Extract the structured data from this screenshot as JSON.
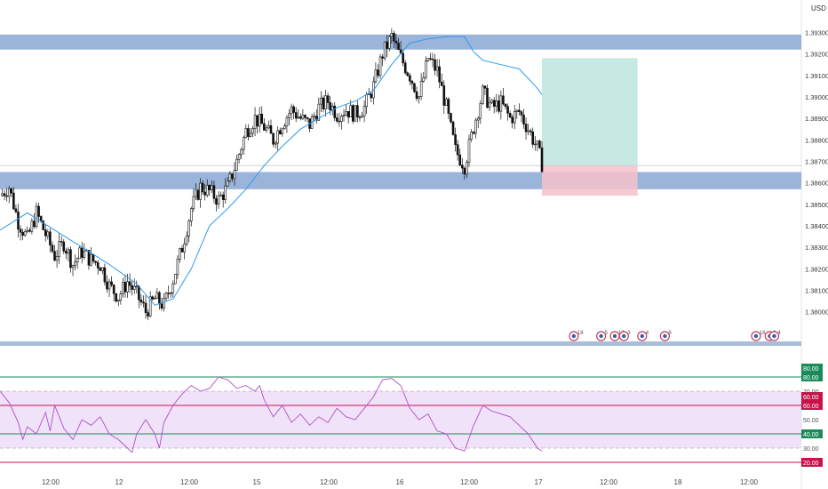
{
  "currency_label": "USD",
  "colors": {
    "zone": "#7f9fd0",
    "ma": "#2f9bf0",
    "rsi": "#b04fc8",
    "rsi_band": "#e9d6f7",
    "target": "#b9e4dd",
    "stop": "#f6c1c9",
    "green_line": "#1a8a5a",
    "red_line": "#c8124a",
    "candle": "#111111"
  },
  "chart_data": [
    {
      "type": "candlestick",
      "ylim": [
        1.3787,
        1.3943
      ],
      "price_ticks": [
        1.38,
        1.381,
        1.382,
        1.383,
        1.384,
        1.385,
        1.386,
        1.387,
        1.388,
        1.389,
        1.39,
        1.391,
        1.392,
        1.393,
        1.394
      ],
      "price_tick_labels": [
        "1.38000",
        "1.38100",
        "1.38200",
        "1.38300",
        "1.38400",
        "1.38500",
        "1.38600",
        "1.38700",
        "1.38800",
        "1.38900",
        "1.39000",
        "1.39100",
        "1.39200",
        "1.39300",
        "1.39400"
      ],
      "x_tick_labels": [
        "12:00",
        "12",
        "12:00",
        "15",
        "12:00",
        "16",
        "12:00",
        "17",
        "12:00",
        "18",
        "12:00"
      ],
      "close_path": [
        [
          0,
          1.3854
        ],
        [
          2,
          1.3858
        ],
        [
          4,
          1.3842
        ],
        [
          6,
          1.3834
        ],
        [
          8,
          1.3846
        ],
        [
          10,
          1.3836
        ],
        [
          12,
          1.3826
        ],
        [
          14,
          1.3832
        ],
        [
          16,
          1.3822
        ],
        [
          18,
          1.3828
        ],
        [
          20,
          1.3824
        ],
        [
          22,
          1.3822
        ],
        [
          24,
          1.3812
        ],
        [
          26,
          1.3807
        ],
        [
          28,
          1.3814
        ],
        [
          30,
          1.3808
        ],
        [
          32,
          1.38
        ],
        [
          34,
          1.3806
        ],
        [
          36,
          1.3803
        ],
        [
          38,
          1.3815
        ],
        [
          40,
          1.383
        ],
        [
          42,
          1.3848
        ],
        [
          44,
          1.3858
        ],
        [
          46,
          1.3856
        ],
        [
          48,
          1.3852
        ],
        [
          50,
          1.3858
        ],
        [
          52,
          1.387
        ],
        [
          54,
          1.3884
        ],
        [
          56,
          1.389
        ],
        [
          58,
          1.3886
        ],
        [
          60,
          1.388
        ],
        [
          62,
          1.3888
        ],
        [
          64,
          1.3894
        ],
        [
          66,
          1.389
        ],
        [
          68,
          1.3887
        ],
        [
          70,
          1.3895
        ],
        [
          72,
          1.3898
        ],
        [
          74,
          1.3892
        ],
        [
          76,
          1.3894
        ],
        [
          78,
          1.3892
        ],
        [
          80,
          1.3895
        ],
        [
          82,
          1.3905
        ],
        [
          84,
          1.392
        ],
        [
          86,
          1.3928
        ],
        [
          88,
          1.3918
        ],
        [
          90,
          1.391
        ],
        [
          92,
          1.39
        ],
        [
          94,
          1.3918
        ],
        [
          96,
          1.3912
        ],
        [
          98,
          1.3895
        ],
        [
          100,
          1.3875
        ],
        [
          102,
          1.3868
        ],
        [
          104,
          1.3886
        ],
        [
          106,
          1.3902
        ],
        [
          108,
          1.3895
        ],
        [
          110,
          1.3897
        ],
        [
          112,
          1.389
        ],
        [
          114,
          1.3893
        ],
        [
          116,
          1.3885
        ],
        [
          118,
          1.3876
        ],
        [
          119,
          1.3869
        ]
      ],
      "moving_average": [
        [
          0,
          1.3838
        ],
        [
          6,
          1.3846
        ],
        [
          12,
          1.3838
        ],
        [
          18,
          1.383
        ],
        [
          24,
          1.3822
        ],
        [
          30,
          1.3813
        ],
        [
          34,
          1.3803
        ],
        [
          38,
          1.3806
        ],
        [
          42,
          1.382
        ],
        [
          46,
          1.384
        ],
        [
          50,
          1.3848
        ],
        [
          54,
          1.3857
        ],
        [
          58,
          1.3868
        ],
        [
          62,
          1.3877
        ],
        [
          66,
          1.3885
        ],
        [
          70,
          1.389
        ],
        [
          74,
          1.3895
        ],
        [
          78,
          1.3898
        ],
        [
          82,
          1.3903
        ],
        [
          86,
          1.3915
        ],
        [
          90,
          1.3925
        ],
        [
          94,
          1.3927
        ],
        [
          98,
          1.3928
        ],
        [
          102,
          1.3928
        ],
        [
          104,
          1.3921
        ],
        [
          106,
          1.3917
        ],
        [
          110,
          1.3915
        ],
        [
          114,
          1.3913
        ],
        [
          118,
          1.3904
        ],
        [
          119,
          1.3901
        ]
      ],
      "index_range": [
        0,
        132
      ],
      "zones": [
        {
          "from": 1.3922,
          "to": 1.3929
        },
        {
          "from": 1.3857,
          "to": 1.3865
        }
      ],
      "horizontal_line": 1.3868,
      "position": {
        "start_index": 119,
        "end_index": 140,
        "entry": 1.3868,
        "target": 1.3918,
        "stop": 1.3854
      },
      "event_markers": [
        {
          "index": 126,
          "label": "18"
        },
        {
          "index": 132,
          "label": "5"
        },
        {
          "index": 135,
          "label": "12"
        },
        {
          "index": 137,
          "label": "3"
        },
        {
          "index": 141,
          "label": "4"
        },
        {
          "index": 146,
          "label": "8"
        },
        {
          "index": 166,
          "label": "16"
        },
        {
          "index": 169,
          "label": "2"
        },
        {
          "index": 170,
          "label": "4"
        }
      ]
    },
    {
      "type": "line",
      "ylim": [
        15,
        100
      ],
      "ticks": [
        {
          "value": 80,
          "label": "80.00",
          "style": "green-badge"
        },
        {
          "value": 70,
          "label": "70.00",
          "style": "plain"
        },
        {
          "value": 60,
          "label": "60.00",
          "style": "red-badge"
        },
        {
          "value": 50,
          "label": "50.00",
          "style": "plain"
        },
        {
          "value": 40,
          "label": "40.00",
          "style": "green-badge"
        },
        {
          "value": 30,
          "label": "30.00",
          "style": "plain"
        },
        {
          "value": 20,
          "label": "20.00",
          "style": "red-badge"
        }
      ],
      "top_badge": {
        "value": 80,
        "label": "80.00",
        "style": "green-badge"
      },
      "second_badge": {
        "value": 60,
        "label": "60.00",
        "style": "red-badge"
      },
      "band": [
        30,
        70
      ],
      "levels": [
        {
          "value": 80,
          "color": "green"
        },
        {
          "value": 60,
          "color": "red"
        },
        {
          "value": 40,
          "color": "green"
        },
        {
          "value": 20,
          "color": "red"
        }
      ],
      "rsi_path": [
        [
          0,
          70
        ],
        [
          2,
          62
        ],
        [
          4,
          48
        ],
        [
          5,
          36
        ],
        [
          6,
          45
        ],
        [
          8,
          40
        ],
        [
          10,
          55
        ],
        [
          11,
          42
        ],
        [
          12,
          60
        ],
        [
          14,
          44
        ],
        [
          16,
          36
        ],
        [
          18,
          50
        ],
        [
          20,
          46
        ],
        [
          22,
          52
        ],
        [
          24,
          40
        ],
        [
          26,
          36
        ],
        [
          28,
          30
        ],
        [
          29,
          27
        ],
        [
          30,
          40
        ],
        [
          32,
          50
        ],
        [
          34,
          40
        ],
        [
          35,
          30
        ],
        [
          36,
          48
        ],
        [
          38,
          60
        ],
        [
          40,
          68
        ],
        [
          42,
          74
        ],
        [
          44,
          70
        ],
        [
          46,
          72
        ],
        [
          48,
          80
        ],
        [
          50,
          78
        ],
        [
          52,
          72
        ],
        [
          54,
          74
        ],
        [
          56,
          70
        ],
        [
          57,
          74
        ],
        [
          58,
          64
        ],
        [
          60,
          52
        ],
        [
          62,
          60
        ],
        [
          64,
          48
        ],
        [
          66,
          54
        ],
        [
          68,
          46
        ],
        [
          70,
          52
        ],
        [
          72,
          48
        ],
        [
          74,
          58
        ],
        [
          76,
          52
        ],
        [
          78,
          50
        ],
        [
          80,
          58
        ],
        [
          82,
          66
        ],
        [
          84,
          78
        ],
        [
          86,
          79
        ],
        [
          88,
          74
        ],
        [
          90,
          58
        ],
        [
          92,
          50
        ],
        [
          94,
          54
        ],
        [
          96,
          42
        ],
        [
          98,
          40
        ],
        [
          100,
          30
        ],
        [
          102,
          28
        ],
        [
          104,
          46
        ],
        [
          106,
          60
        ],
        [
          108,
          56
        ],
        [
          110,
          54
        ],
        [
          112,
          52
        ],
        [
          114,
          46
        ],
        [
          116,
          40
        ],
        [
          118,
          30
        ],
        [
          119,
          28
        ]
      ],
      "index_range": [
        0,
        132
      ]
    }
  ]
}
